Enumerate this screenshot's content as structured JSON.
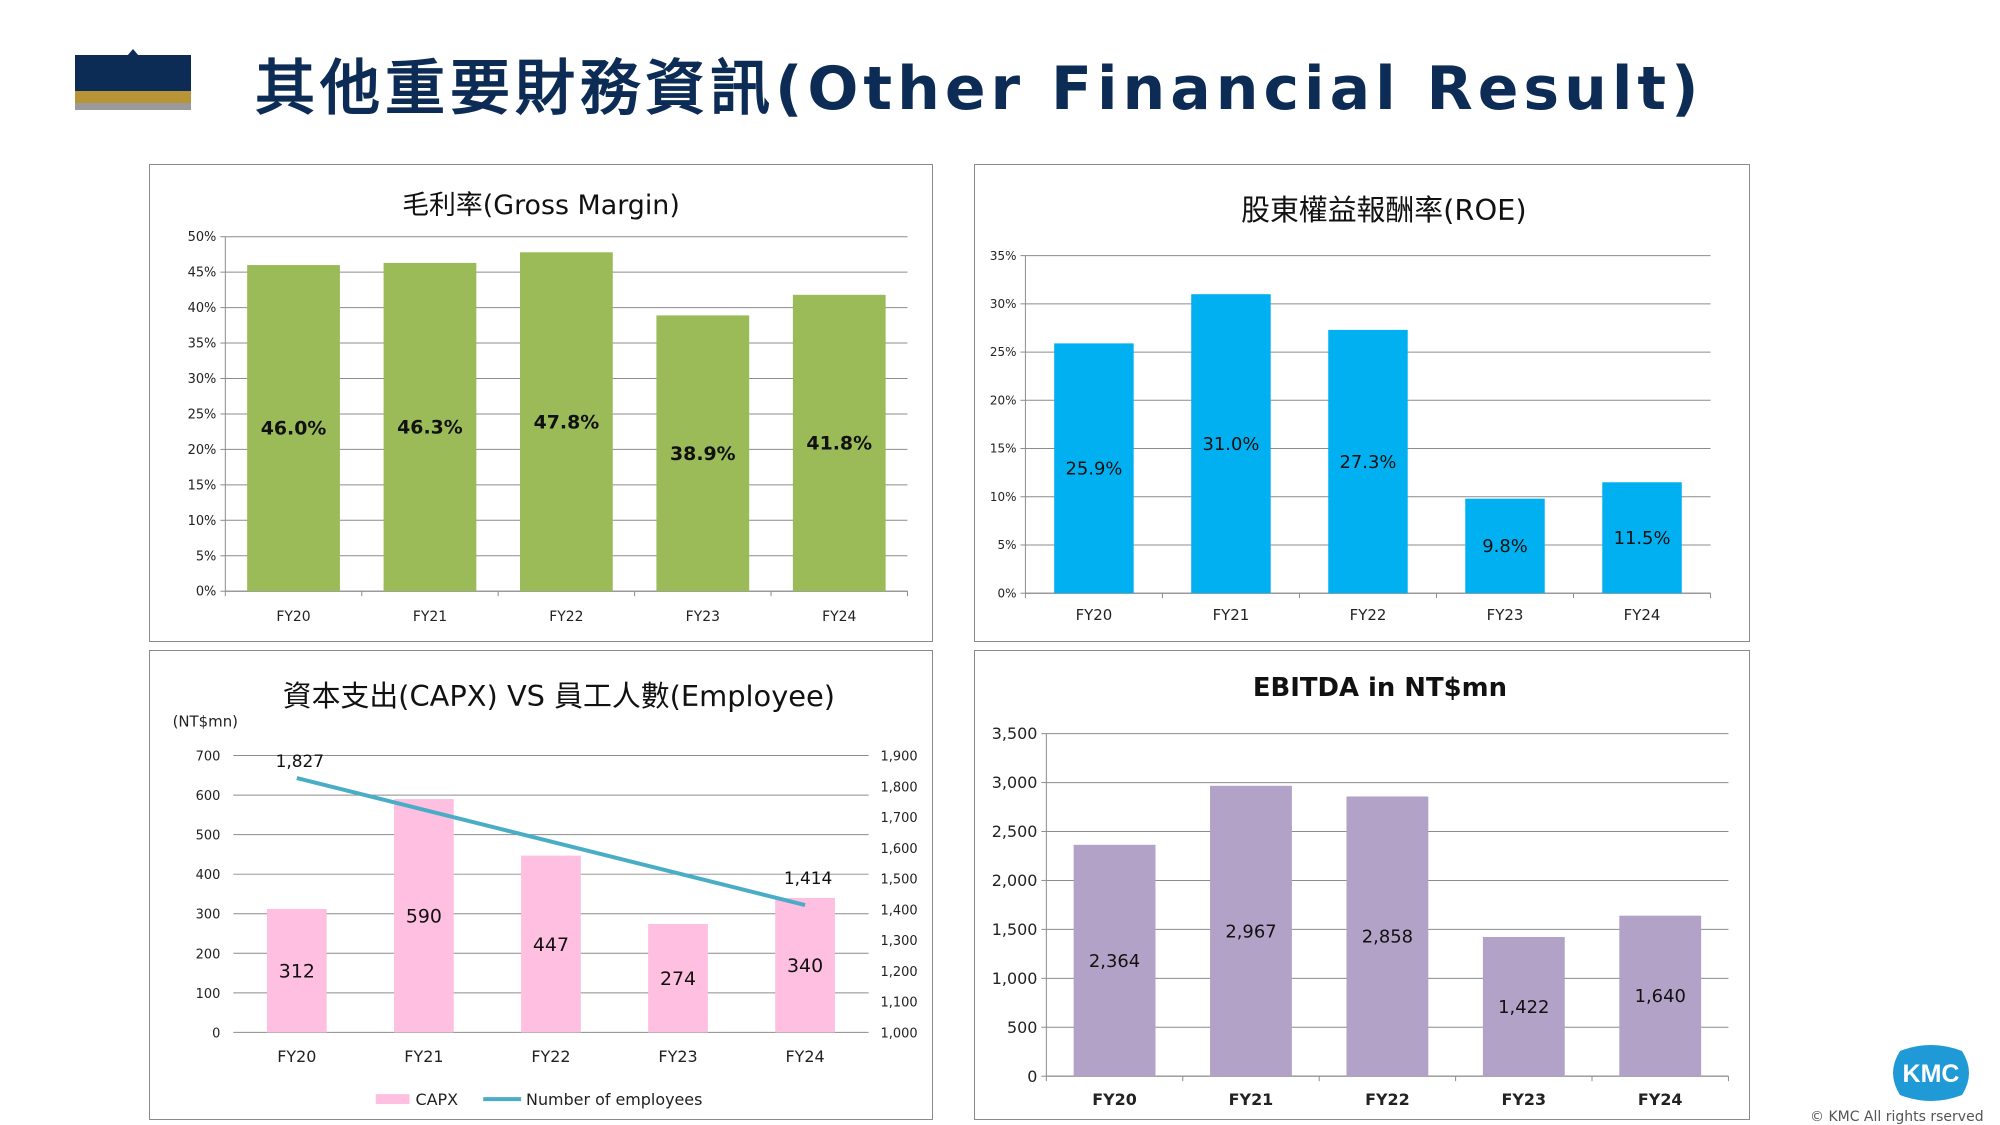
{
  "page": {
    "title": "其他重要財務資訊(Other Financial Result)",
    "copyright": "© KMC All rights rserved",
    "logo_text": "KMC"
  },
  "chart_data": [
    {
      "id": "gross-margin",
      "type": "bar",
      "title": "毛利率(Gross Margin)",
      "categories": [
        "FY20",
        "FY21",
        "FY22",
        "FY23",
        "FY24"
      ],
      "values": [
        46.0,
        46.3,
        47.8,
        38.9,
        41.8
      ],
      "data_labels": [
        "46.0%",
        "46.3%",
        "47.8%",
        "38.9%",
        "41.8%"
      ],
      "ylim": [
        0,
        50
      ],
      "yticks": [
        "0%",
        "5%",
        "10%",
        "15%",
        "20%",
        "25%",
        "30%",
        "35%",
        "40%",
        "45%",
        "50%"
      ],
      "color": "#9bbb59",
      "grid": true
    },
    {
      "id": "roe",
      "type": "bar",
      "title": "股東權益報酬率(ROE)",
      "categories": [
        "FY20",
        "FY21",
        "FY22",
        "FY23",
        "FY24"
      ],
      "values": [
        25.9,
        31.0,
        27.3,
        9.8,
        11.5
      ],
      "data_labels": [
        "25.9%",
        "31.0%",
        "27.3%",
        "9.8%",
        "11.5%"
      ],
      "ylim": [
        0,
        35
      ],
      "yticks": [
        "0%",
        "5%",
        "10%",
        "15%",
        "20%",
        "25%",
        "30%",
        "35%"
      ],
      "color": "#00b0f0",
      "grid": true
    },
    {
      "id": "capex-employee",
      "type": "bar+line",
      "title": "資本支出(CAPX) VS 員工人數(Employee)",
      "unit_label": "(NT$mn)",
      "categories": [
        "FY20",
        "FY21",
        "FY22",
        "FY23",
        "FY24"
      ],
      "series": [
        {
          "name": "CAPX",
          "type": "bar",
          "axis": "left",
          "values": [
            312,
            590,
            447,
            274,
            340
          ],
          "data_labels": [
            "312",
            "590",
            "447",
            "274",
            "340"
          ],
          "color": "#ffbfe0"
        },
        {
          "name": "Number of employees",
          "type": "line",
          "axis": "right",
          "values": [
            1827,
            null,
            null,
            null,
            1414
          ],
          "data_labels": [
            "1,827",
            "1,414"
          ],
          "color": "#4bacc6"
        }
      ],
      "ylim_left": [
        0,
        700
      ],
      "yticks_left": [
        "0",
        "100",
        "200",
        "300",
        "400",
        "500",
        "600",
        "700"
      ],
      "ylim_right": [
        1000,
        1900
      ],
      "yticks_right": [
        "1,000",
        "1,100",
        "1,200",
        "1,300",
        "1,400",
        "1,500",
        "1,600",
        "1,700",
        "1,800",
        "1,900"
      ],
      "legend": [
        "CAPX",
        "Number of employees"
      ],
      "legend_position": "bottom",
      "grid": true
    },
    {
      "id": "ebitda",
      "type": "bar",
      "title": "EBITDA in NT$mn",
      "categories": [
        "FY20",
        "FY21",
        "FY22",
        "FY23",
        "FY24"
      ],
      "values": [
        2364,
        2967,
        2858,
        1422,
        1640
      ],
      "data_labels": [
        "2,364",
        "2,967",
        "2,858",
        "1,422",
        "1,640"
      ],
      "ylim": [
        0,
        3500
      ],
      "yticks": [
        "0",
        "500",
        "1,000",
        "1,500",
        "2,000",
        "2,500",
        "3,000",
        "3,500"
      ],
      "color": "#b3a2c7",
      "grid": true
    }
  ]
}
